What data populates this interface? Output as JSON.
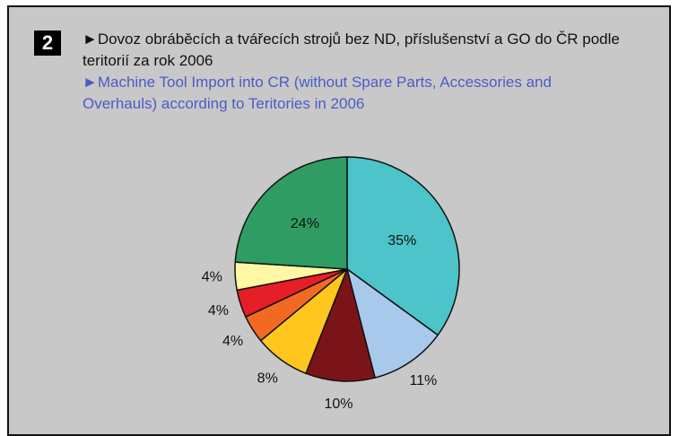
{
  "badge": "2",
  "chart_data": {
    "type": "pie",
    "title": "►Dovoz obráběcích a tvářecích strojů bez ND, příslušenství a GO do ČR podle teritorií za rok 2006",
    "subtitle": "►Machine Tool Import into CR (without Spare Parts, Accessories and Overhauls) according to Teritories in 2006",
    "values": [
      35,
      11,
      10,
      8,
      4,
      4,
      4,
      24
    ],
    "value_labels": [
      "35%",
      "11%",
      "10%",
      "8%",
      "4%",
      "4%",
      "4%",
      "24%"
    ],
    "colors": [
      "#4cc4c9",
      "#a9c9ec",
      "#7b1419",
      "#ffc61e",
      "#f26a22",
      "#e61e28",
      "#fff7a3",
      "#2f9c63"
    ]
  }
}
